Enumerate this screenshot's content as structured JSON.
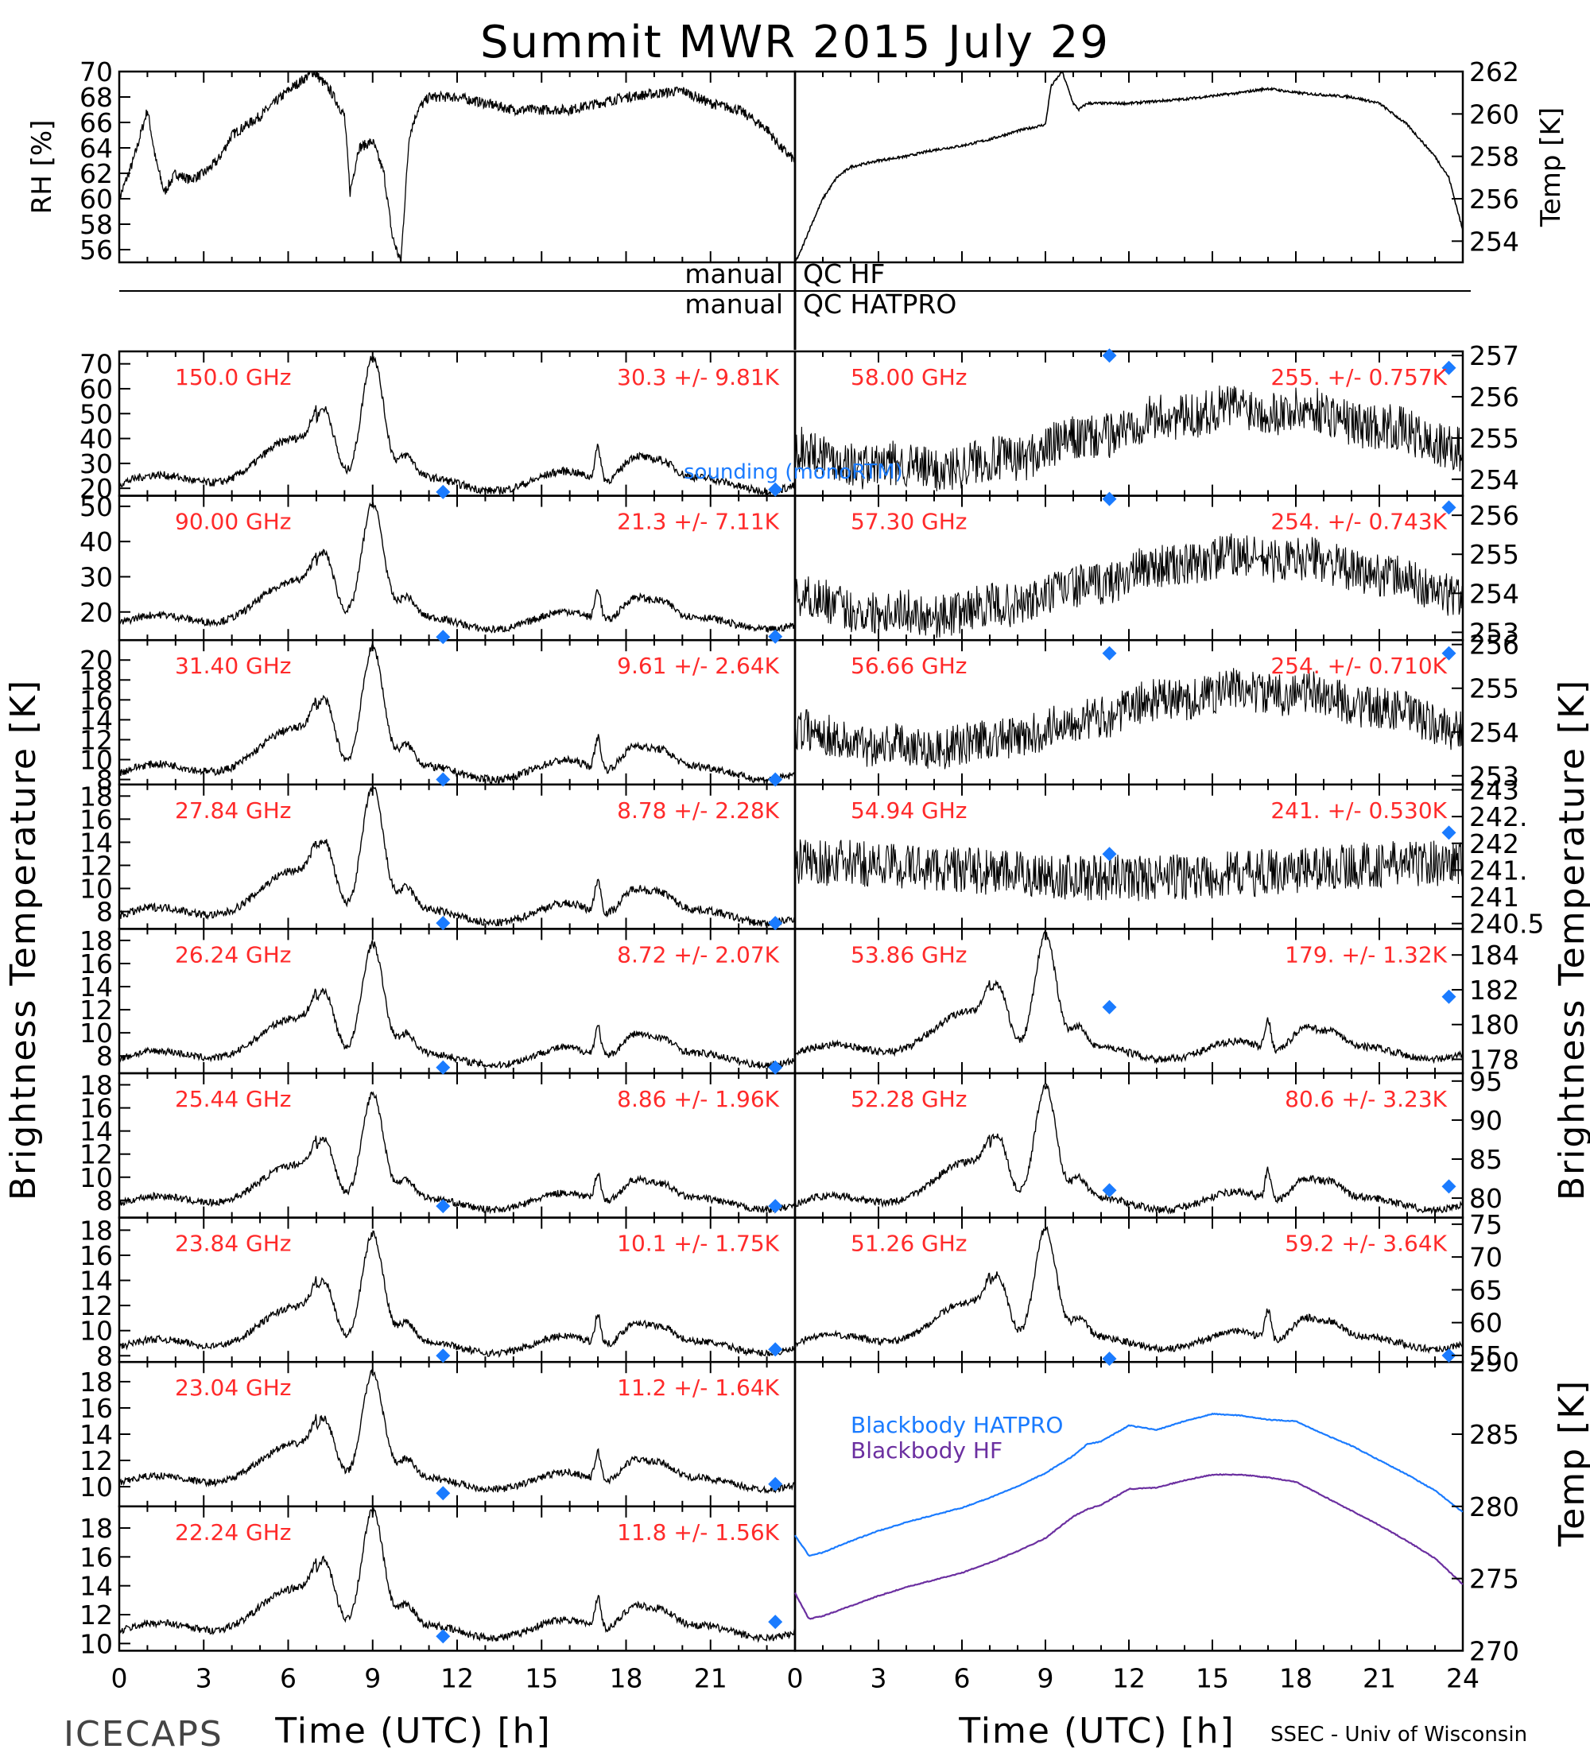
{
  "title": "Summit MWR 2015 July 29",
  "footer": {
    "left": "ICECAPS",
    "right": "SSEC - Univ of Wisconsin",
    "xlabel": "Time (UTC) [h]"
  },
  "labels": {
    "rh": "RH [%]",
    "temp": "Temp [K]",
    "bt_left": "Brightness Temperature [K]",
    "bt_right": "Brightness Temperature [K]",
    "bb_temp": "Temp [K]",
    "qc_hf": "QC HF",
    "qc_hatpro": "QC HATPRO",
    "manual": "manual",
    "sounding": "sounding (monoRTM)",
    "bb_hatpro": "Blackbody HATPRO",
    "bb_hf": "Blackbody HF"
  },
  "chart_data": [
    {
      "type": "line",
      "id": "rh",
      "ylabel": "RH [%]",
      "ylim": [
        55,
        70
      ],
      "yticks": [
        56,
        58,
        60,
        62,
        64,
        66,
        68,
        70
      ],
      "x": [
        0,
        0.5,
        1,
        1.3,
        1.6,
        2,
        2.5,
        3,
        3.5,
        4,
        5,
        6,
        6.9,
        7.5,
        8,
        8.2,
        8.5,
        9,
        9.4,
        9.7,
        10,
        10.3,
        10.6,
        11,
        12,
        14,
        16,
        18,
        20,
        21,
        22,
        23,
        23.5,
        24
      ],
      "values": [
        60,
        63,
        67,
        63,
        60.5,
        62,
        61.5,
        62,
        63,
        65,
        66.5,
        68.5,
        70,
        68.5,
        66.5,
        60.5,
        64,
        64.5,
        62,
        57,
        55,
        65,
        67,
        68,
        68,
        67,
        67,
        68,
        68.5,
        67.5,
        67,
        65.5,
        64,
        63
      ]
    },
    {
      "type": "line",
      "id": "temp",
      "ylabel": "Temp [K]",
      "ylim": [
        253,
        262
      ],
      "yticks": [
        254,
        256,
        258,
        260,
        262
      ],
      "x": [
        0,
        0.2,
        0.5,
        1,
        1.5,
        2,
        3,
        4,
        5,
        6,
        7,
        8,
        9,
        9.2,
        9.6,
        10,
        10.2,
        10.5,
        11,
        12,
        14,
        16,
        17,
        18,
        20,
        21,
        22,
        23,
        23.5,
        24
      ],
      "values": [
        253,
        253.5,
        254.5,
        256,
        257,
        257.5,
        257.8,
        258,
        258.3,
        258.5,
        258.8,
        259.2,
        259.5,
        261.3,
        262,
        260.5,
        260.2,
        260.5,
        260.5,
        260.5,
        260.7,
        261,
        261.2,
        261,
        260.8,
        260.5,
        259.5,
        258,
        257,
        254.5
      ]
    },
    {
      "type": "line",
      "id": "bb",
      "ylabel": "Temp [K]",
      "ylim": [
        270,
        290
      ],
      "yticks": [
        270,
        275,
        280,
        285,
        290
      ],
      "series": [
        {
          "name": "Blackbody HATPRO",
          "color": "#1a7bff",
          "x": [
            0,
            0.5,
            1,
            2,
            3,
            4,
            5,
            6,
            7,
            8,
            9,
            10,
            10.5,
            11,
            12,
            13,
            14,
            15,
            16,
            17,
            18,
            19,
            20,
            21,
            22,
            23,
            24
          ],
          "values": [
            278,
            276.6,
            276.8,
            277.6,
            278.3,
            278.9,
            279.4,
            279.9,
            280.6,
            281.4,
            282.3,
            283.5,
            284.3,
            284.5,
            285.6,
            285.3,
            285.9,
            286.4,
            286.3,
            286.0,
            285.9,
            285.0,
            284.2,
            283.2,
            282.2,
            281.1,
            279.6
          ]
        },
        {
          "name": "Blackbody HF",
          "color": "#6b2fa0",
          "x": [
            0,
            0.5,
            1,
            2,
            3,
            4,
            5,
            6,
            7,
            8,
            9,
            10,
            10.5,
            11,
            12,
            13,
            14,
            15,
            16,
            17,
            18,
            19,
            20,
            21,
            22,
            23,
            24
          ],
          "values": [
            274,
            272.2,
            272.4,
            273.1,
            273.8,
            274.4,
            274.9,
            275.4,
            276.1,
            276.9,
            277.8,
            279.3,
            279.8,
            280.1,
            281.2,
            281.3,
            281.8,
            282.2,
            282.2,
            282.0,
            281.7,
            280.7,
            279.7,
            278.7,
            277.6,
            276.4,
            274.6
          ]
        }
      ]
    },
    {
      "type": "scatter",
      "id": "bt_left",
      "xlim": [
        0,
        24
      ],
      "xticks": [
        0,
        3,
        6,
        9,
        12,
        15,
        18,
        21
      ],
      "panels": [
        {
          "freq": "150.0 GHz",
          "stats": "30.3 +/-  9.81K",
          "ylim": [
            17,
            75
          ],
          "yticks": [
            20,
            30,
            40,
            50,
            60,
            70
          ],
          "base": 19,
          "peak": 72,
          "sounding": [
            [
              11.5,
              18.5
            ],
            [
              23.3,
              19.5
            ]
          ]
        },
        {
          "freq": "90.00 GHz",
          "stats": "21.3 +/-  7.11K",
          "ylim": [
            12,
            53
          ],
          "yticks": [
            20,
            30,
            40,
            50
          ],
          "base": 15,
          "peak": 50,
          "sounding": [
            [
              11.5,
              12.5
            ],
            [
              23.3,
              13
            ]
          ]
        },
        {
          "freq": "31.40 GHz",
          "stats": "9.61 +/- 2.64K",
          "ylim": [
            7.5,
            22
          ],
          "yticks": [
            8,
            10,
            12,
            14,
            16,
            18,
            20
          ],
          "base": 8,
          "peak": 21,
          "sounding": [
            [
              11.5,
              8
            ],
            [
              23.3,
              8
            ]
          ]
        },
        {
          "freq": "27.84 GHz",
          "stats": "8.78 +/- 2.28K",
          "ylim": [
            6.5,
            19
          ],
          "yticks": [
            8,
            10,
            12,
            14,
            16,
            18
          ],
          "base": 7,
          "peak": 18.5,
          "sounding": [
            [
              11.5,
              7
            ],
            [
              23.3,
              7
            ]
          ]
        },
        {
          "freq": "26.24 GHz",
          "stats": "8.72 +/- 2.07K",
          "ylim": [
            6.5,
            19
          ],
          "yticks": [
            8,
            10,
            12,
            14,
            16,
            18
          ],
          "base": 7.2,
          "peak": 17.5,
          "sounding": [
            [
              11.5,
              7
            ],
            [
              23.3,
              7
            ]
          ]
        },
        {
          "freq": "25.44 GHz",
          "stats": "8.86 +/- 1.96K",
          "ylim": [
            6.5,
            19
          ],
          "yticks": [
            8,
            10,
            12,
            14,
            16,
            18
          ],
          "base": 7.2,
          "peak": 17,
          "sounding": [
            [
              11.5,
              7.5
            ],
            [
              23.3,
              7.5
            ]
          ]
        },
        {
          "freq": "23.84 GHz",
          "stats": "10.1 +/- 1.75K",
          "ylim": [
            7.5,
            19
          ],
          "yticks": [
            8,
            10,
            12,
            14,
            16,
            18
          ],
          "base": 8.2,
          "peak": 17.5,
          "sounding": [
            [
              11.5,
              8
            ],
            [
              23.3,
              8.5
            ]
          ]
        },
        {
          "freq": "23.04 GHz",
          "stats": "11.2 +/- 1.64K",
          "ylim": [
            8.5,
            19.5
          ],
          "yticks": [
            10,
            12,
            14,
            16,
            18
          ],
          "base": 9.8,
          "peak": 18.5,
          "sounding": [
            [
              11.5,
              9.5
            ],
            [
              23.3,
              10.2
            ]
          ]
        },
        {
          "freq": "22.24 GHz",
          "stats": "11.8 +/- 1.56K",
          "ylim": [
            9.5,
            19.5
          ],
          "yticks": [
            10,
            12,
            14,
            16,
            18
          ],
          "base": 10.4,
          "peak": 19,
          "sounding": [
            [
              11.5,
              10.5
            ],
            [
              23.3,
              11.5
            ]
          ]
        }
      ]
    },
    {
      "type": "scatter",
      "id": "bt_right",
      "xlim": [
        0,
        24
      ],
      "xticks": [
        0,
        3,
        6,
        9,
        12,
        15,
        18,
        21,
        24
      ],
      "panels": [
        {
          "freq": "58.00 GHz",
          "stats": "255. +/- 0.757K",
          "ylim": [
            253.6,
            257.1
          ],
          "yticks": [
            254,
            255,
            256,
            257
          ],
          "kind": "o2",
          "mean": 255,
          "amp": 0.8,
          "sounding": [
            [
              11.3,
              257
            ],
            [
              23.5,
              256.7
            ]
          ]
        },
        {
          "freq": "57.30 GHz",
          "stats": "254. +/- 0.743K",
          "ylim": [
            252.8,
            256.5
          ],
          "yticks": [
            253,
            254,
            255,
            256
          ],
          "kind": "o2",
          "mean": 254.2,
          "amp": 0.8,
          "sounding": [
            [
              11.3,
              256.5
            ],
            [
              23.5,
              256.2
            ]
          ]
        },
        {
          "freq": "56.66 GHz",
          "stats": "254. +/- 0.710K",
          "ylim": [
            252.8,
            256.1
          ],
          "yticks": [
            253,
            254,
            255,
            256
          ],
          "kind": "o2",
          "mean": 254.3,
          "amp": 0.7,
          "sounding": [
            [
              11.3,
              255.8
            ],
            [
              23.5,
              255.8
            ]
          ]
        },
        {
          "freq": "54.94 GHz",
          "stats": "241. +/- 0.530K",
          "ylim": [
            240.4,
            243.1
          ],
          "yticks": [
            240.5,
            241,
            241.5,
            242,
            242.5,
            243
          ],
          "ytickLabels": [
            "240.5",
            "241",
            "241.",
            "242",
            "242.",
            "243"
          ],
          "kind": "flat",
          "mean": 241.5,
          "amp": 0.4,
          "sounding": [
            [
              11.3,
              241.8
            ],
            [
              23.5,
              242.2
            ]
          ]
        },
        {
          "freq": "53.86 GHz",
          "stats": "179. +/- 1.32K",
          "ylim": [
            177.2,
            185.5
          ],
          "yticks": [
            178,
            180,
            182,
            184
          ],
          "kind": "wv",
          "base": 178,
          "peak": 185,
          "sounding": [
            [
              11.3,
              181
            ],
            [
              23.5,
              181.6
            ]
          ]
        },
        {
          "freq": "52.28 GHz",
          "stats": "80.6 +/- 3.23K",
          "ylim": [
            77.5,
            96
          ],
          "yticks": [
            80,
            85,
            90,
            95
          ],
          "kind": "wv",
          "base": 78.5,
          "peak": 94,
          "sounding": [
            [
              11.3,
              81
            ],
            [
              23.5,
              81.5
            ]
          ]
        },
        {
          "freq": "51.26 GHz",
          "stats": "59.2 +/- 3.64K",
          "ylim": [
            54,
            76
          ],
          "yticks": [
            55,
            60,
            65,
            70,
            75
          ],
          "kind": "wv",
          "base": 56,
          "peak": 74,
          "sounding": [
            [
              11.3,
              54.5
            ],
            [
              23.5,
              55
            ]
          ]
        }
      ]
    }
  ]
}
